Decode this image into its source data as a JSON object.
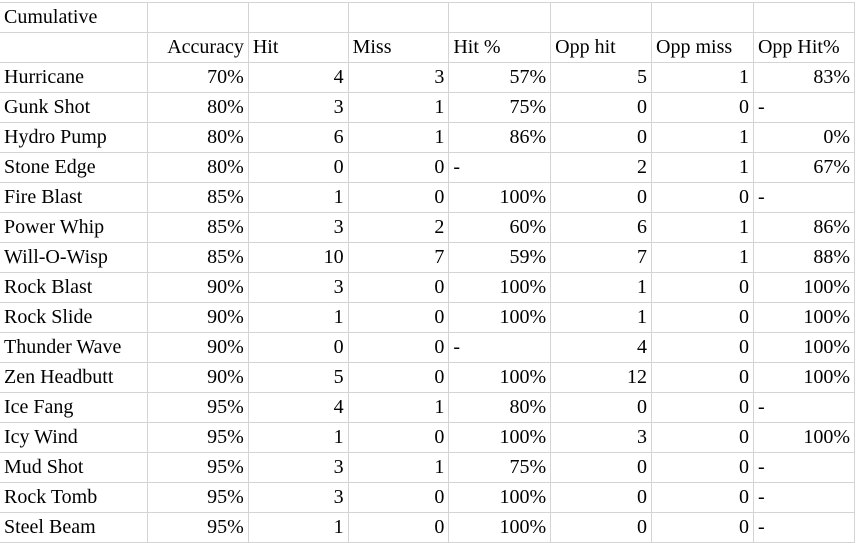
{
  "title": "Cumulative",
  "headers": [
    "",
    "Accuracy",
    "Hit",
    "Miss",
    "Hit %",
    "Opp hit",
    "Opp miss",
    "Opp Hit%"
  ],
  "rows": [
    [
      "Hurricane",
      "70%",
      "4",
      "3",
      "57%",
      "5",
      "1",
      "83%"
    ],
    [
      "Gunk Shot",
      "80%",
      "3",
      "1",
      "75%",
      "0",
      "0",
      "-"
    ],
    [
      "Hydro Pump",
      "80%",
      "6",
      "1",
      "86%",
      "0",
      "1",
      "0%"
    ],
    [
      "Stone Edge",
      "80%",
      "0",
      "0",
      "-",
      "2",
      "1",
      "67%"
    ],
    [
      "Fire Blast",
      "85%",
      "1",
      "0",
      "100%",
      "0",
      "0",
      "-"
    ],
    [
      "Power Whip",
      "85%",
      "3",
      "2",
      "60%",
      "6",
      "1",
      "86%"
    ],
    [
      "Will-O-Wisp",
      "85%",
      "10",
      "7",
      "59%",
      "7",
      "1",
      "88%"
    ],
    [
      "Rock Blast",
      "90%",
      "3",
      "0",
      "100%",
      "1",
      "0",
      "100%"
    ],
    [
      "Rock Slide",
      "90%",
      "1",
      "0",
      "100%",
      "1",
      "0",
      "100%"
    ],
    [
      "Thunder Wave",
      "90%",
      "0",
      "0",
      "-",
      "4",
      "0",
      "100%"
    ],
    [
      "Zen Headbutt",
      "90%",
      "5",
      "0",
      "100%",
      "12",
      "0",
      "100%"
    ],
    [
      "Ice Fang",
      "95%",
      "4",
      "1",
      "80%",
      "0",
      "0",
      "-"
    ],
    [
      "Icy Wind",
      "95%",
      "1",
      "0",
      "100%",
      "3",
      "0",
      "100%"
    ],
    [
      "Mud Shot",
      "95%",
      "3",
      "1",
      "75%",
      "0",
      "0",
      "-"
    ],
    [
      "Rock Tomb",
      "95%",
      "3",
      "0",
      "100%",
      "0",
      "0",
      "-"
    ],
    [
      "Steel Beam",
      "95%",
      "1",
      "0",
      "100%",
      "0",
      "0",
      "-"
    ]
  ]
}
